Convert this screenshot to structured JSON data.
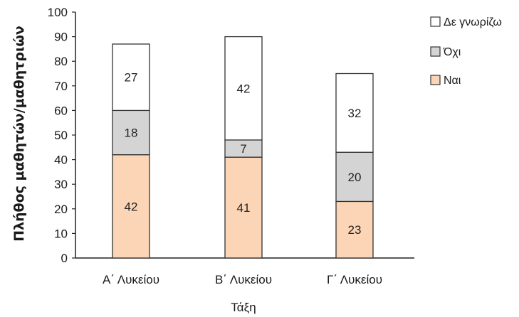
{
  "chart_data": {
    "type": "bar",
    "stacked": true,
    "categories": [
      "Α΄ Λυκείου",
      "Β΄ Λυκείου",
      "Γ΄ Λυκείου"
    ],
    "series": [
      {
        "name": "Ναι",
        "values": [
          42,
          41,
          23
        ],
        "color": "#fbd5b5"
      },
      {
        "name": "Όχι",
        "values": [
          18,
          7,
          20
        ],
        "color": "#d4d4d4"
      },
      {
        "name": "Δε γνωρίζω",
        "values": [
          27,
          42,
          32
        ],
        "color": "#ffffff"
      }
    ],
    "legend_order": [
      "Δε γνωρίζω",
      "Όχι",
      "Ναι"
    ],
    "xlabel": "Τάξη",
    "ylabel": "Πλήθος μαθητών/μαθητριών",
    "ylim": [
      0,
      100
    ],
    "yticks": [
      0,
      10,
      20,
      30,
      40,
      50,
      60,
      70,
      80,
      90,
      100
    ],
    "grid": false,
    "legend_position": "right"
  }
}
